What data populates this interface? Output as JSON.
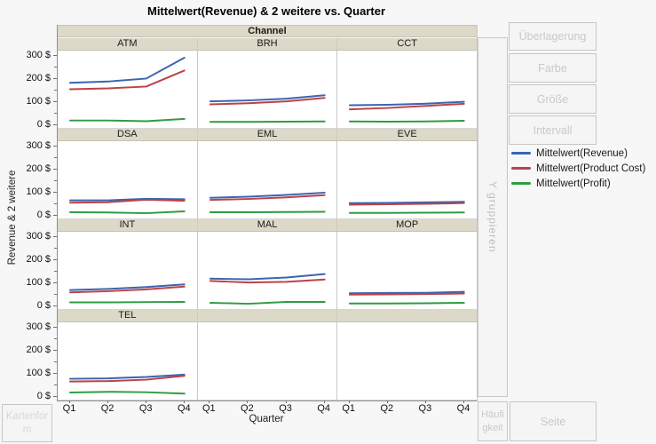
{
  "title": "Mittelwert(Revenue) & 2 weitere vs. Quarter",
  "axes": {
    "y_title": "Revenue & 2 weitere",
    "x_title": "Quarter"
  },
  "legend": {
    "items": [
      {
        "label": "Mittelwert(Revenue)",
        "color": "#3a65b1"
      },
      {
        "label": "Mittelwert(Product Cost)",
        "color": "#bd4248"
      },
      {
        "label": "Mittelwert(Profit)",
        "color": "#2f9c41"
      }
    ]
  },
  "drop_zones": {
    "overlay": "Überlagerung",
    "color": "Farbe",
    "size": "Größe",
    "interval": "Intervall",
    "y_group": "Y gruppieren",
    "frequency": "Häufigkeit",
    "page": "Seite",
    "map_shape": "Kartenform"
  },
  "chart_data": {
    "type": "line",
    "group_label": "Channel",
    "x": [
      "Q1",
      "Q2",
      "Q3",
      "Q4"
    ],
    "x_tick_labels": [
      "Q1",
      "Q2",
      "Q3",
      "Q4"
    ],
    "y_axis": {
      "ylim": [
        0,
        300
      ],
      "ticks": [
        300,
        200,
        100,
        0
      ],
      "tick_labels": [
        "300 $",
        "200 $",
        "100 $",
        "0 $"
      ],
      "minor_tick_step": 50
    },
    "layout": {
      "columns": 3,
      "rows": 4,
      "legend_position": "right",
      "grid": false
    },
    "series_names": [
      "Mittelwert(Revenue)",
      "Mittelwert(Product Cost)",
      "Mittelwert(Profit)"
    ],
    "panels": [
      {
        "label": "ATM",
        "values": [
          [
            178,
            184,
            197,
            288
          ],
          [
            150,
            154,
            162,
            232
          ],
          [
            13,
            13,
            10,
            20
          ]
        ]
      },
      {
        "label": "BRH",
        "values": [
          [
            97,
            101,
            109,
            124
          ],
          [
            84,
            89,
            97,
            112
          ],
          [
            7,
            7,
            8,
            9
          ]
        ]
      },
      {
        "label": "CCT",
        "values": [
          [
            80,
            82,
            87,
            95
          ],
          [
            62,
            68,
            77,
            86
          ],
          [
            9,
            8,
            9,
            12
          ]
        ]
      },
      {
        "label": "DSA",
        "values": [
          [
            60,
            60,
            67,
            65
          ],
          [
            50,
            52,
            63,
            58
          ],
          [
            8,
            7,
            4,
            12
          ]
        ]
      },
      {
        "label": "EML",
        "values": [
          [
            71,
            76,
            84,
            94
          ],
          [
            62,
            66,
            73,
            83
          ],
          [
            8,
            8,
            9,
            10
          ]
        ]
      },
      {
        "label": "EVE",
        "values": [
          [
            48,
            49,
            51,
            54
          ],
          [
            41,
            43,
            45,
            48
          ],
          [
            5,
            5,
            6,
            7
          ]
        ]
      },
      {
        "label": "INT",
        "values": [
          [
            64,
            69,
            77,
            89
          ],
          [
            54,
            59,
            67,
            79
          ],
          [
            10,
            10,
            11,
            12
          ]
        ]
      },
      {
        "label": "MAL",
        "values": [
          [
            114,
            111,
            119,
            134
          ],
          [
            104,
            97,
            100,
            110
          ],
          [
            8,
            4,
            12,
            12
          ]
        ]
      },
      {
        "label": "MOP",
        "values": [
          [
            50,
            51,
            52,
            56
          ],
          [
            44,
            45,
            46,
            49
          ],
          [
            5,
            5,
            6,
            8
          ]
        ]
      },
      {
        "label": "TEL",
        "values": [
          [
            72,
            74,
            80,
            90
          ],
          [
            60,
            62,
            68,
            85
          ],
          [
            12,
            15,
            13,
            7
          ]
        ]
      }
    ]
  }
}
